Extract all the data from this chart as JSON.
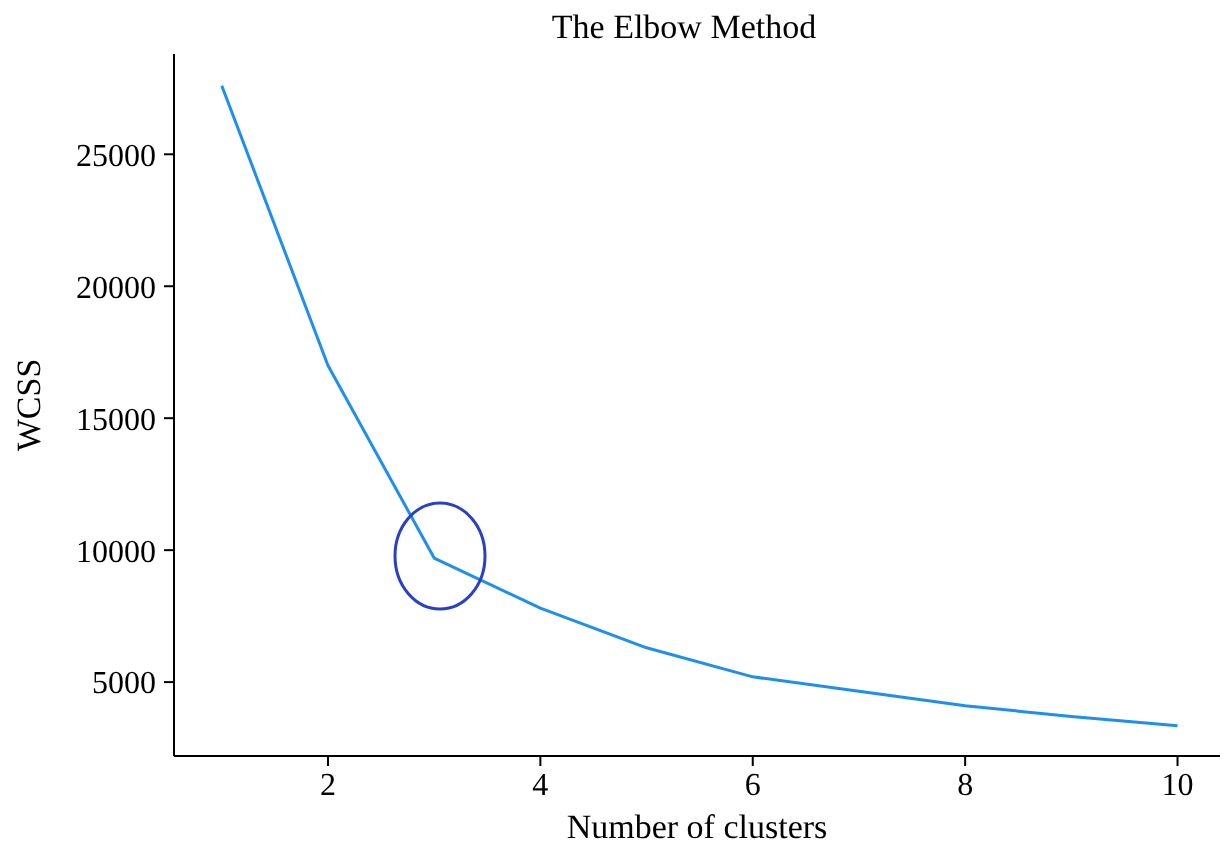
{
  "chart_data": {
    "type": "line",
    "title": "The Elbow Method",
    "xlabel": "Number of clusters",
    "ylabel": "WCSS",
    "x": [
      1,
      2,
      3,
      4,
      5,
      6,
      7,
      8,
      9,
      10
    ],
    "series": [
      {
        "color": "#1e8ff0",
        "values": [
          27600,
          17000,
          9700,
          7800,
          6300,
          5200,
          4650,
          4100,
          3700,
          3350
        ]
      }
    ],
    "xlim": [
      0.55,
      10.4
    ],
    "xticks": [
      2,
      4,
      6,
      8,
      10
    ],
    "ylim": [
      2200,
      28800
    ],
    "yticks": [
      5000,
      10000,
      15000,
      20000,
      25000
    ],
    "grid": false,
    "legend": false,
    "marker": "none",
    "line_style": "solid"
  }
}
